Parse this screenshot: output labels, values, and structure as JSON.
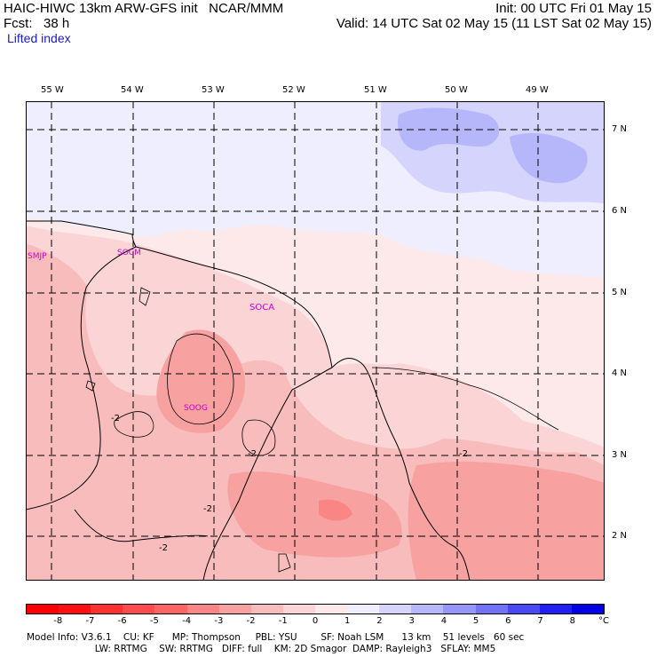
{
  "header": {
    "title": "HAIC-HIWC 13km ARW-GFS init   NCAR/MMM",
    "fcst": "Fcst:   38 h",
    "init": "Init: 00 UTC Fri 01 May 15",
    "valid": "Valid: 14 UTC Sat 02 May 15 (11 LST Sat 02 May 15)",
    "field": "Lifted index"
  },
  "map": {
    "lon_labels": [
      "55 W",
      "54 W",
      "53 W",
      "52 W",
      "51 W",
      "50 W",
      "49 W"
    ],
    "lat_labels": [
      "7 N",
      "6 N",
      "5 N",
      "4 N",
      "3 N",
      "2 N"
    ],
    "stations": [
      "SMJP",
      "SOCM",
      "SOCA",
      "SOOG"
    ],
    "contour_labels": [
      "-2",
      "-2",
      "-2",
      "-2",
      "-2"
    ]
  },
  "colorbar": {
    "levels": [
      "-8",
      "-7",
      "-6",
      "-5",
      "-4",
      "-3",
      "-2",
      "-1",
      "0",
      "1",
      "2",
      "3",
      "4",
      "5",
      "6",
      "7",
      "8"
    ],
    "unit": "°C",
    "colors": [
      "#ff1010",
      "#ff3030",
      "#ff4b4b",
      "#ff6464",
      "#f98585",
      "#f7a1a1",
      "#f9bcbc",
      "#fbd5d5",
      "#fde9e9",
      "#eeeefe",
      "#d4d4fc",
      "#b6b6fb",
      "#9595fa",
      "#7272f7",
      "#4a4af5",
      "#2020f2",
      "#0000e6"
    ]
  },
  "footer": {
    "line1": "Model Info: V3.6.1    CU: KF      MP: Thompson     PBL: YSU        SF: Noah LSM      13 km    51 levels   60 sec",
    "line2": "                       LW: RRTMG    SW: RRTMG   DIFF: full    KM: 2D Smagor  DAMP: Rayleigh3   SFLAY: MM5"
  }
}
